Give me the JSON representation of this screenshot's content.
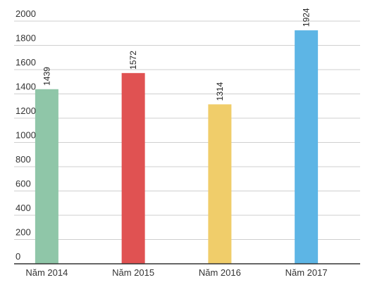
{
  "chart_data": {
    "type": "bar",
    "categories": [
      "Năm 2014",
      "Năm 2015",
      "Năm 2016",
      "Năm 2017"
    ],
    "values": [
      1439,
      1572,
      1314,
      1924
    ],
    "colors": [
      "#8fc6a8",
      "#e05252",
      "#f0cd6a",
      "#5db5e5"
    ],
    "ylim": [
      0,
      2000
    ],
    "yticks": [
      0,
      200,
      400,
      600,
      800,
      1000,
      1200,
      1400,
      1600,
      1800,
      2000
    ],
    "grid": true,
    "data_labels": [
      "1439",
      "1572",
      "1314",
      "1924"
    ]
  }
}
